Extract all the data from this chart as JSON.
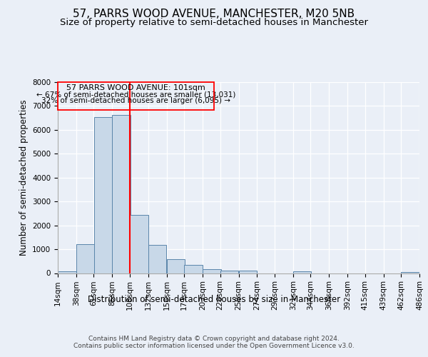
{
  "title": "57, PARRS WOOD AVENUE, MANCHESTER, M20 5NB",
  "subtitle": "Size of property relative to semi-detached houses in Manchester",
  "xlabel": "Distribution of semi-detached houses by size in Manchester",
  "ylabel": "Number of semi-detached properties",
  "footer1": "Contains HM Land Registry data © Crown copyright and database right 2024.",
  "footer2": "Contains public sector information licensed under the Open Government Licence v3.0.",
  "annotation_title": "57 PARRS WOOD AVENUE: 101sqm",
  "annotation_line1": "← 67% of semi-detached houses are smaller (13,031)",
  "annotation_line2": "32% of semi-detached houses are larger (6,095) →",
  "bin_edges": [
    14,
    38,
    61,
    85,
    108,
    132,
    156,
    179,
    203,
    226,
    250,
    274,
    297,
    321,
    344,
    368,
    392,
    415,
    439,
    462,
    486
  ],
  "bar_heights": [
    80,
    1220,
    6520,
    6620,
    2450,
    1180,
    580,
    330,
    160,
    110,
    90,
    0,
    0,
    75,
    0,
    0,
    0,
    0,
    0,
    45
  ],
  "bar_color": "#c8d8e8",
  "bar_edge_color": "#5a85aa",
  "red_line_x": 108,
  "ylim": [
    0,
    8000
  ],
  "yticks": [
    0,
    1000,
    2000,
    3000,
    4000,
    5000,
    6000,
    7000,
    8000
  ],
  "background_color": "#eaeff7",
  "axes_bg_color": "#eaeff7",
  "grid_color": "#ffffff",
  "title_fontsize": 11,
  "subtitle_fontsize": 9.5,
  "ylabel_fontsize": 8.5,
  "xlabel_fontsize": 8.5,
  "annotation_fontsize": 8,
  "tick_fontsize": 7.5,
  "footer_fontsize": 6.5
}
